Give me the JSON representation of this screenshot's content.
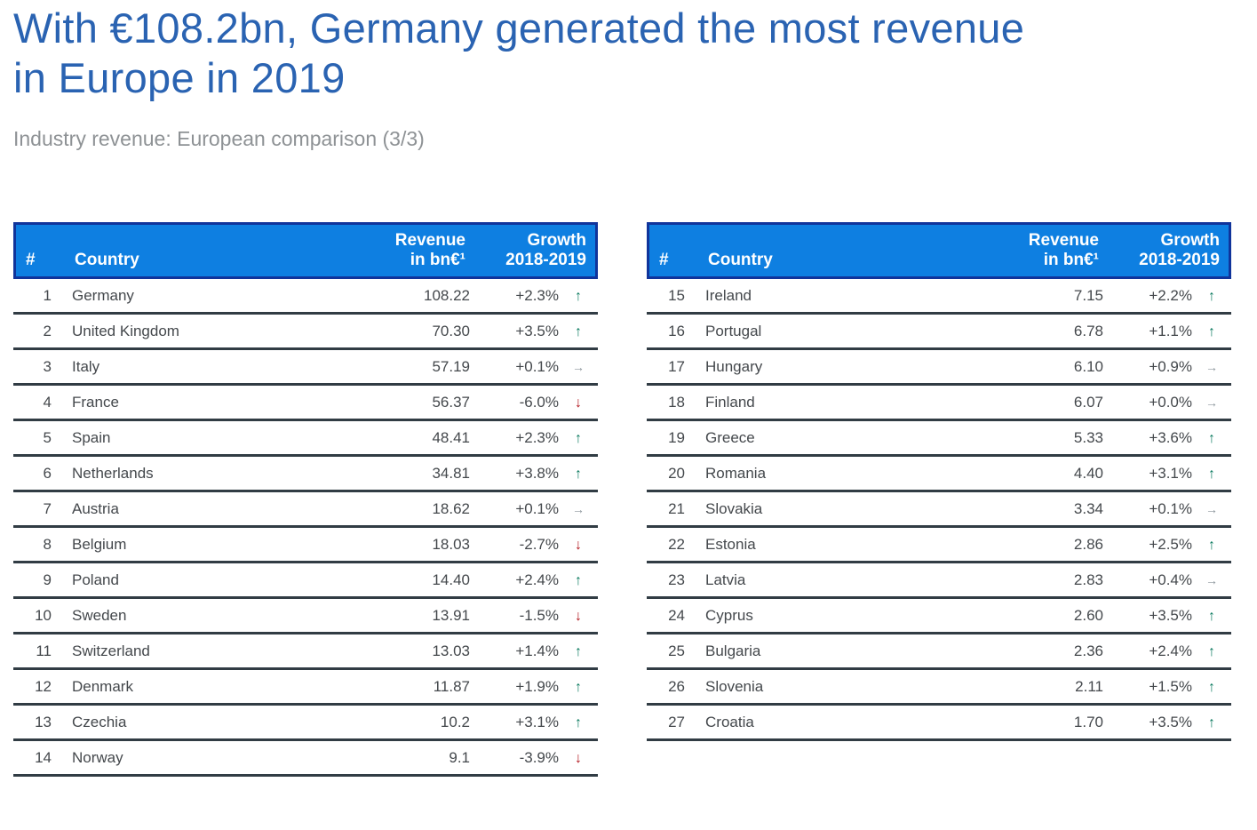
{
  "header": {
    "title_line1": "With €108.2bn, Germany generated the most revenue",
    "title_line2": "in Europe in 2019",
    "subtitle": "Industry revenue: European comparison (3/3)"
  },
  "table_header": {
    "rank": "#",
    "country": "Country",
    "revenue_line1": "Revenue",
    "revenue_line2": "in bn€¹",
    "growth_line1": "Growth",
    "growth_line2": "2018-2019"
  },
  "icons": {
    "up": "↑",
    "down": "↓",
    "neutral": "→"
  },
  "colors": {
    "header_background": "#0e7fe1",
    "header_border": "#10349b",
    "row_separator": "#313c44",
    "title_blue": "#2a63b2",
    "subtitle_gray": "#8e9295",
    "trend_up_green": "#0b7a5f",
    "trend_down_red": "#b2161d",
    "trend_neutral_gray": "#8d969c"
  },
  "tables": {
    "left": {
      "rows": [
        {
          "rank": "1",
          "country": "Germany",
          "revenue": "108.22",
          "growth": "+2.3%",
          "trend": "up"
        },
        {
          "rank": "2",
          "country": "United Kingdom",
          "revenue": "70.30",
          "growth": "+3.5%",
          "trend": "up"
        },
        {
          "rank": "3",
          "country": "Italy",
          "revenue": "57.19",
          "growth": "+0.1%",
          "trend": "neutral"
        },
        {
          "rank": "4",
          "country": "France",
          "revenue": "56.37",
          "growth": "-6.0%",
          "trend": "down"
        },
        {
          "rank": "5",
          "country": "Spain",
          "revenue": "48.41",
          "growth": "+2.3%",
          "trend": "up"
        },
        {
          "rank": "6",
          "country": "Netherlands",
          "revenue": "34.81",
          "growth": "+3.8%",
          "trend": "up"
        },
        {
          "rank": "7",
          "country": "Austria",
          "revenue": "18.62",
          "growth": "+0.1%",
          "trend": "neutral"
        },
        {
          "rank": "8",
          "country": "Belgium",
          "revenue": "18.03",
          "growth": "-2.7%",
          "trend": "down"
        },
        {
          "rank": "9",
          "country": "Poland",
          "revenue": "14.40",
          "growth": "+2.4%",
          "trend": "up"
        },
        {
          "rank": "10",
          "country": "Sweden",
          "revenue": "13.91",
          "growth": "-1.5%",
          "trend": "down"
        },
        {
          "rank": "11",
          "country": "Switzerland",
          "revenue": "13.03",
          "growth": "+1.4%",
          "trend": "up"
        },
        {
          "rank": "12",
          "country": "Denmark",
          "revenue": "11.87",
          "growth": "+1.9%",
          "trend": "up"
        },
        {
          "rank": "13",
          "country": "Czechia",
          "revenue": "10.2",
          "growth": "+3.1%",
          "trend": "up"
        },
        {
          "rank": "14",
          "country": "Norway",
          "revenue": "9.1",
          "growth": "-3.9%",
          "trend": "down"
        }
      ]
    },
    "right": {
      "rows": [
        {
          "rank": "15",
          "country": "Ireland",
          "revenue": "7.15",
          "growth": "+2.2%",
          "trend": "up"
        },
        {
          "rank": "16",
          "country": "Portugal",
          "revenue": "6.78",
          "growth": "+1.1%",
          "trend": "up"
        },
        {
          "rank": "17",
          "country": "Hungary",
          "revenue": "6.10",
          "growth": "+0.9%",
          "trend": "neutral"
        },
        {
          "rank": "18",
          "country": "Finland",
          "revenue": "6.07",
          "growth": "+0.0%",
          "trend": "neutral"
        },
        {
          "rank": "19",
          "country": "Greece",
          "revenue": "5.33",
          "growth": "+3.6%",
          "trend": "up"
        },
        {
          "rank": "20",
          "country": "Romania",
          "revenue": "4.40",
          "growth": "+3.1%",
          "trend": "up"
        },
        {
          "rank": "21",
          "country": "Slovakia",
          "revenue": "3.34",
          "growth": "+0.1%",
          "trend": "neutral"
        },
        {
          "rank": "22",
          "country": "Estonia",
          "revenue": "2.86",
          "growth": "+2.5%",
          "trend": "up"
        },
        {
          "rank": "23",
          "country": "Latvia",
          "revenue": "2.83",
          "growth": "+0.4%",
          "trend": "neutral"
        },
        {
          "rank": "24",
          "country": "Cyprus",
          "revenue": "2.60",
          "growth": "+3.5%",
          "trend": "up"
        },
        {
          "rank": "25",
          "country": "Bulgaria",
          "revenue": "2.36",
          "growth": "+2.4%",
          "trend": "up"
        },
        {
          "rank": "26",
          "country": "Slovenia",
          "revenue": "2.11",
          "growth": "+1.5%",
          "trend": "up"
        },
        {
          "rank": "27",
          "country": "Croatia",
          "revenue": "1.70",
          "growth": "+3.5%",
          "trend": "up"
        }
      ]
    }
  }
}
